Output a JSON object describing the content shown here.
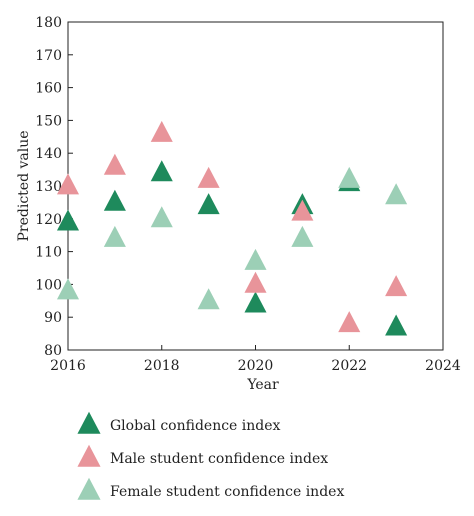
{
  "chart_data": {
    "type": "scatter",
    "xlabel": "Year",
    "ylabel": "Predicted value",
    "xlim": [
      2016,
      2024
    ],
    "ylim": [
      80,
      180
    ],
    "xticks": [
      2016,
      2018,
      2020,
      2022,
      2024
    ],
    "yticks": [
      80,
      90,
      100,
      110,
      120,
      130,
      140,
      150,
      160,
      170,
      180
    ],
    "grid": false,
    "legend_position": "bottom",
    "marker": "triangle",
    "series": [
      {
        "name": "Global confidence index",
        "color": "#1e8a5c",
        "points": [
          {
            "x": 2016,
            "y": 119
          },
          {
            "x": 2017,
            "y": 125
          },
          {
            "x": 2018,
            "y": 134
          },
          {
            "x": 2019,
            "y": 124
          },
          {
            "x": 2020,
            "y": 94
          },
          {
            "x": 2021,
            "y": 124
          },
          {
            "x": 2022,
            "y": 131
          },
          {
            "x": 2023,
            "y": 87
          }
        ]
      },
      {
        "name": "Male student confidence index",
        "color": "#e8949a",
        "points": [
          {
            "x": 2016,
            "y": 130
          },
          {
            "x": 2017,
            "y": 136
          },
          {
            "x": 2018,
            "y": 146
          },
          {
            "x": 2019,
            "y": 132
          },
          {
            "x": 2020,
            "y": 100
          },
          {
            "x": 2021,
            "y": 122
          },
          {
            "x": 2022,
            "y": 88
          },
          {
            "x": 2023,
            "y": 99
          }
        ]
      },
      {
        "name": "Female student confidence index",
        "color": "#9ccfb6",
        "points": [
          {
            "x": 2016,
            "y": 98
          },
          {
            "x": 2017,
            "y": 114
          },
          {
            "x": 2018,
            "y": 120
          },
          {
            "x": 2019,
            "y": 95
          },
          {
            "x": 2020,
            "y": 107
          },
          {
            "x": 2021,
            "y": 114
          },
          {
            "x": 2022,
            "y": 132
          },
          {
            "x": 2023,
            "y": 127
          }
        ]
      }
    ]
  }
}
